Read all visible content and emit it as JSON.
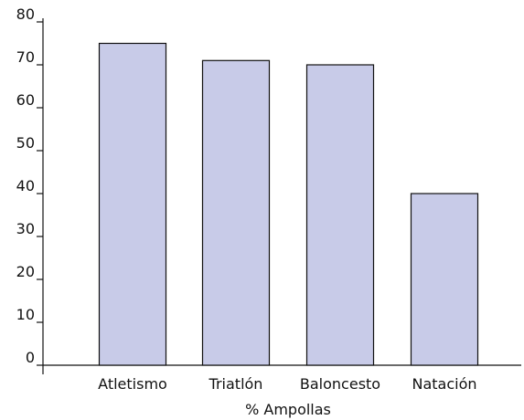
{
  "chart_data": {
    "type": "bar",
    "title": "",
    "xlabel": "% Ampollas",
    "ylabel": "",
    "categories": [
      "Atletismo",
      "Triatlón",
      "Baloncesto",
      "Natación"
    ],
    "values": [
      75,
      71,
      70,
      40
    ],
    "ylim": [
      0,
      80
    ],
    "yticks": [
      0,
      10,
      20,
      30,
      40,
      50,
      60,
      70,
      80
    ],
    "grid": false,
    "legend": "none",
    "bar_color": "#c8cbe8",
    "bar_stroke": "#111111"
  }
}
